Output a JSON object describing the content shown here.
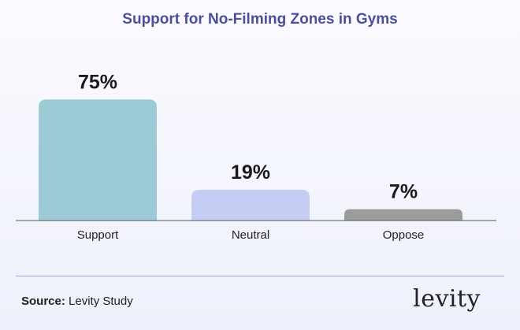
{
  "chart_data": {
    "type": "bar",
    "title": "Support for No-Filming Zones in Gyms",
    "categories": [
      "Support",
      "Neutral",
      "Oppose"
    ],
    "values": [
      75,
      19,
      7
    ],
    "value_labels": [
      "75%",
      "19%",
      "7%"
    ],
    "colors": [
      "#9ccbd6",
      "#c5cdf5",
      "#9c9c9c"
    ],
    "ylim": [
      0,
      100
    ],
    "grid": false,
    "xlabel": "",
    "ylabel": ""
  },
  "footer": {
    "source_label": "Source:",
    "source_text": "Levity Study",
    "logo": "levity"
  }
}
